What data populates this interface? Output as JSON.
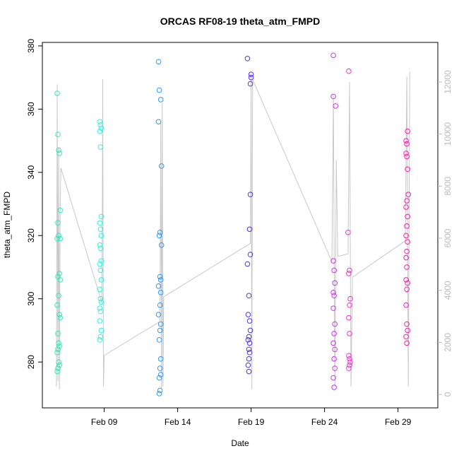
{
  "chart_data": {
    "type": "scatter",
    "title": "ORCAS RF08-19 theta_atm_FMPD",
    "x_label": "Date",
    "y_label": "theta_atm_FMPD",
    "xlim": [
      4.79,
      31.71
    ],
    "xticks": [
      {
        "value": 9,
        "label": "Feb 09"
      },
      {
        "value": 14,
        "label": "Feb 14"
      },
      {
        "value": 19,
        "label": "Feb 19"
      },
      {
        "value": 24,
        "label": "Feb 24"
      },
      {
        "value": 29,
        "label": "Feb 29"
      }
    ],
    "ylim": [
      265.5,
      381.1
    ],
    "yticks": [
      280,
      300,
      320,
      340,
      360,
      380
    ],
    "y2lim": [
      -516,
      13520
    ],
    "y2ticks": [
      0,
      2000,
      4000,
      6000,
      8000,
      10000,
      12000
    ],
    "series": [
      {
        "color": "#33e8b8",
        "x": [
          5.8,
          5.85,
          5.9,
          5.95,
          6.0,
          5.85,
          5.9,
          6.0,
          5.8,
          5.95,
          5.85,
          6.0,
          5.9,
          5.8,
          5.95,
          6.0,
          5.85,
          5.9,
          5.95,
          5.85,
          5.8,
          5.9,
          5.95,
          5.85,
          5.8
        ],
        "values": [
          365,
          352,
          347,
          346,
          328,
          324,
          320,
          319,
          319,
          308,
          307,
          306,
          301,
          298,
          295,
          294,
          289,
          286,
          285,
          284,
          283,
          280,
          279,
          278,
          277
        ]
      },
      {
        "color": "#33f0e0",
        "x": [
          8.7,
          8.75,
          8.8,
          8.7,
          8.75,
          8.8,
          8.7,
          8.75,
          8.8,
          8.7,
          8.75,
          8.8,
          8.7,
          8.75,
          8.8,
          8.7,
          8.75,
          8.8,
          8.7,
          8.75,
          8.7,
          8.8,
          8.75,
          8.7
        ],
        "values": [
          356,
          355,
          354,
          353,
          348,
          326,
          324,
          322,
          320,
          317,
          316,
          312,
          311,
          309,
          306,
          303,
          300,
          299,
          297,
          296,
          293,
          290,
          288,
          287
        ]
      },
      {
        "color": "#3399ee",
        "x": [
          12.7,
          12.75,
          12.85,
          12.7,
          12.9,
          12.8,
          12.75,
          12.9,
          12.8,
          12.85,
          12.7,
          12.85,
          12.8,
          12.7,
          12.85,
          12.8,
          12.75,
          12.85,
          12.8,
          12.85,
          12.75,
          12.8,
          12.75
        ],
        "values": [
          375,
          366,
          363,
          356,
          342,
          321,
          320,
          317,
          307,
          306,
          304,
          302,
          298,
          295,
          292,
          290,
          287,
          281,
          278,
          276,
          275,
          271,
          270
        ]
      },
      {
        "color": "#5533dd",
        "x": [
          18.75,
          19.0,
          19.0,
          18.95,
          18.95,
          18.9,
          18.95,
          18.75,
          18.85,
          18.8,
          18.9,
          18.95,
          18.85,
          18.8,
          18.9,
          18.85,
          18.9,
          18.85,
          18.8,
          18.85
        ],
        "values": [
          376,
          371,
          370,
          368,
          333,
          322,
          314,
          311,
          301,
          295,
          293,
          290,
          288,
          287,
          286,
          284,
          283,
          281,
          279,
          277
        ]
      },
      {
        "color": "#cc33ee",
        "x": [
          24.6,
          24.6,
          24.75,
          24.6,
          24.65,
          24.7,
          24.6,
          24.65,
          24.6,
          24.7,
          24.65,
          24.6,
          24.7,
          24.65,
          24.7,
          24.6,
          24.65
        ],
        "values": [
          377,
          364,
          361,
          312,
          309,
          305,
          302,
          301,
          297,
          292,
          289,
          286,
          284,
          281,
          278,
          275,
          272
        ]
      },
      {
        "color": "#ee33cc",
        "x": [
          25.65,
          25.6,
          25.7,
          25.65,
          25.75,
          25.7,
          25.65,
          25.7,
          25.65,
          25.7,
          25.75,
          25.7,
          25.65
        ],
        "values": [
          372,
          321,
          309,
          308,
          300,
          298,
          294,
          289,
          282,
          281,
          280,
          279,
          278
        ]
      },
      {
        "color": "#ee22aa",
        "x": [
          29.65,
          29.55,
          29.6,
          29.55,
          29.6,
          29.65,
          29.7,
          29.6,
          29.55,
          29.65,
          29.6,
          29.55,
          29.65,
          29.6,
          29.55,
          29.6,
          29.55,
          29.65,
          29.6,
          29.55,
          29.6,
          29.65,
          29.55,
          29.6
        ],
        "values": [
          353,
          350,
          349,
          346,
          345,
          341,
          333,
          331,
          329,
          326,
          323,
          320,
          318,
          315,
          313,
          310,
          306,
          305,
          303,
          298,
          292,
          290,
          288,
          286
        ]
      },
      {
        "type": "line",
        "axis": "y2",
        "color": "#c8c8c8",
        "x": [
          5.75,
          5.8,
          5.85,
          5.9,
          5.95,
          6.0,
          6.05,
          8.85,
          8.9,
          8.95,
          9.0,
          12.8,
          12.85,
          12.9,
          12.95,
          13.0,
          13.05,
          18.95,
          19.0,
          19.05,
          19.1,
          24.5,
          24.6,
          24.7,
          24.8,
          24.9,
          25.6,
          25.7,
          25.8,
          25.9,
          29.5,
          29.6,
          29.7,
          29.8
        ],
        "values": [
          300,
          11900,
          500,
          9500,
          200,
          7000,
          8700,
          3500,
          12100,
          300,
          1500,
          2800,
          10500,
          200,
          11200,
          300,
          3750,
          5800,
          12300,
          200,
          12100,
          5100,
          11500,
          300,
          9000,
          5300,
          5400,
          12000,
          300,
          4500,
          5900,
          12200,
          300,
          12400
        ]
      }
    ]
  }
}
